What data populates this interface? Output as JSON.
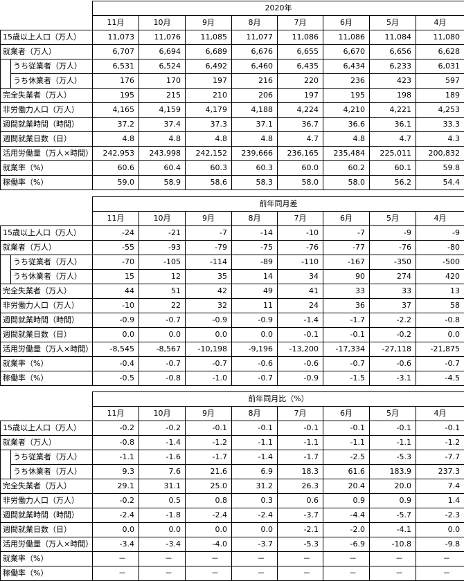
{
  "months": [
    "11月",
    "10月",
    "9月",
    "8月",
    "7月",
    "6月",
    "5月",
    "4月"
  ],
  "sections": [
    {
      "title": "2020年",
      "rows": [
        {
          "label": "15歳以上人口（万人）",
          "indent": false,
          "values": [
            "11,073",
            "11,076",
            "11,085",
            "11,077",
            "11,086",
            "11,086",
            "11,084",
            "11,080"
          ]
        },
        {
          "label": "就業者（万人）",
          "indent": false,
          "values": [
            "6,707",
            "6,694",
            "6,689",
            "6,676",
            "6,655",
            "6,670",
            "6,656",
            "6,628"
          ]
        },
        {
          "label": "うち従業者（万人）",
          "indent": true,
          "values": [
            "6,531",
            "6,524",
            "6,492",
            "6,460",
            "6,435",
            "6,434",
            "6,233",
            "6,031"
          ]
        },
        {
          "label": "うち休業者（万人）",
          "indent": true,
          "values": [
            "176",
            "170",
            "197",
            "216",
            "220",
            "236",
            "423",
            "597"
          ]
        },
        {
          "label": "完全失業者（万人）",
          "indent": false,
          "values": [
            "195",
            "215",
            "210",
            "206",
            "197",
            "195",
            "198",
            "189"
          ]
        },
        {
          "label": "非労働力人口（万人）",
          "indent": false,
          "values": [
            "4,165",
            "4,159",
            "4,179",
            "4,188",
            "4,224",
            "4,210",
            "4,221",
            "4,253"
          ]
        },
        {
          "label": "週間就業時間（時間）",
          "indent": false,
          "values": [
            "37.2",
            "37.4",
            "37.3",
            "37.1",
            "36.7",
            "36.6",
            "36.1",
            "33.3"
          ]
        },
        {
          "label": "週間就業日数（日）",
          "indent": false,
          "values": [
            "4.8",
            "4.8",
            "4.8",
            "4.8",
            "4.7",
            "4.8",
            "4.7",
            "4.3"
          ]
        },
        {
          "label": "活用労働量（万人×時間）",
          "indent": false,
          "values": [
            "242,953",
            "243,998",
            "242,152",
            "239,666",
            "236,165",
            "235,484",
            "225,011",
            "200,832"
          ]
        },
        {
          "label": "就業率（%）",
          "indent": false,
          "values": [
            "60.6",
            "60.4",
            "60.3",
            "60.3",
            "60.0",
            "60.2",
            "60.1",
            "59.8"
          ]
        },
        {
          "label": "稼働率（%）",
          "indent": false,
          "values": [
            "59.0",
            "58.9",
            "58.6",
            "58.3",
            "58.0",
            "58.0",
            "56.2",
            "54.4"
          ]
        }
      ]
    },
    {
      "title": "前年同月差",
      "rows": [
        {
          "label": "15歳以上人口（万人）",
          "indent": false,
          "values": [
            "-24",
            "-21",
            "-7",
            "-14",
            "-10",
            "-7",
            "-9",
            "-9"
          ]
        },
        {
          "label": "就業者（万人）",
          "indent": false,
          "values": [
            "-55",
            "-93",
            "-79",
            "-75",
            "-76",
            "-77",
            "-76",
            "-80"
          ]
        },
        {
          "label": "うち従業者（万人）",
          "indent": true,
          "values": [
            "-70",
            "-105",
            "-114",
            "-89",
            "-110",
            "-167",
            "-350",
            "-500"
          ]
        },
        {
          "label": "うち休業者（万人）",
          "indent": true,
          "values": [
            "15",
            "12",
            "35",
            "14",
            "34",
            "90",
            "274",
            "420"
          ]
        },
        {
          "label": "完全失業者（万人）",
          "indent": false,
          "values": [
            "44",
            "51",
            "42",
            "49",
            "41",
            "33",
            "33",
            "13"
          ]
        },
        {
          "label": "非労働力人口（万人）",
          "indent": false,
          "values": [
            "-10",
            "22",
            "32",
            "11",
            "24",
            "36",
            "37",
            "58"
          ]
        },
        {
          "label": "週間就業時間（時間）",
          "indent": false,
          "values": [
            "-0.9",
            "-0.7",
            "-0.9",
            "-0.9",
            "-1.4",
            "-1.7",
            "-2.2",
            "-0.8"
          ]
        },
        {
          "label": "週間就業日数（日）",
          "indent": false,
          "values": [
            "0.0",
            "0.0",
            "0.0",
            "0.0",
            "-0.1",
            "-0.1",
            "-0.2",
            "0.0"
          ]
        },
        {
          "label": "活用労働量（万人×時間）",
          "indent": false,
          "values": [
            "-8,545",
            "-8,567",
            "-10,198",
            "-9,196",
            "-13,200",
            "-17,334",
            "-27,118",
            "-21,875"
          ]
        },
        {
          "label": "就業率（%）",
          "indent": false,
          "values": [
            "-0.4",
            "-0.7",
            "-0.7",
            "-0.6",
            "-0.6",
            "-0.7",
            "-0.6",
            "-0.7"
          ]
        },
        {
          "label": "稼働率（%）",
          "indent": false,
          "values": [
            "-0.5",
            "-0.8",
            "-1.0",
            "-0.7",
            "-0.9",
            "-1.5",
            "-3.1",
            "-4.5"
          ]
        }
      ]
    },
    {
      "title": "前年同月比（%）",
      "rows": [
        {
          "label": "15歳以上人口（万人）",
          "indent": false,
          "values": [
            "-0.2",
            "-0.2",
            "-0.1",
            "-0.1",
            "-0.1",
            "-0.1",
            "-0.1",
            "-0.1"
          ]
        },
        {
          "label": "就業者（万人）",
          "indent": false,
          "values": [
            "-0.8",
            "-1.4",
            "-1.2",
            "-1.1",
            "-1.1",
            "-1.1",
            "-1.1",
            "-1.2"
          ]
        },
        {
          "label": "うち従業者（万人）",
          "indent": true,
          "values": [
            "-1.1",
            "-1.6",
            "-1.7",
            "-1.4",
            "-1.7",
            "-2.5",
            "-5.3",
            "-7.7"
          ]
        },
        {
          "label": "うち休業者（万人）",
          "indent": true,
          "values": [
            "9.3",
            "7.6",
            "21.6",
            "6.9",
            "18.3",
            "61.6",
            "183.9",
            "237.3"
          ]
        },
        {
          "label": "完全失業者（万人）",
          "indent": false,
          "values": [
            "29.1",
            "31.1",
            "25.0",
            "31.2",
            "26.3",
            "20.4",
            "20.0",
            "7.4"
          ]
        },
        {
          "label": "非労働力人口（万人）",
          "indent": false,
          "values": [
            "-0.2",
            "0.5",
            "0.8",
            "0.3",
            "0.6",
            "0.9",
            "0.9",
            "1.4"
          ]
        },
        {
          "label": "週間就業時間（時間）",
          "indent": false,
          "values": [
            "-2.4",
            "-1.8",
            "-2.4",
            "-2.4",
            "-3.7",
            "-4.4",
            "-5.7",
            "-2.3"
          ]
        },
        {
          "label": "週間就業日数（日）",
          "indent": false,
          "values": [
            "0.0",
            "0.0",
            "0.0",
            "0.0",
            "-2.1",
            "-2.0",
            "-4.1",
            "0.0"
          ]
        },
        {
          "label": "活用労働量（万人×時間）",
          "indent": false,
          "values": [
            "-3.4",
            "-3.4",
            "-4.0",
            "-3.7",
            "-5.3",
            "-6.9",
            "-10.8",
            "-9.8"
          ]
        },
        {
          "label": "就業率（%）",
          "indent": false,
          "values": [
            "－",
            "－",
            "－",
            "－",
            "－",
            "－",
            "－",
            "－"
          ]
        },
        {
          "label": "稼働率（%）",
          "indent": false,
          "values": [
            "－",
            "－",
            "－",
            "－",
            "－",
            "－",
            "－",
            "－"
          ]
        }
      ]
    }
  ]
}
